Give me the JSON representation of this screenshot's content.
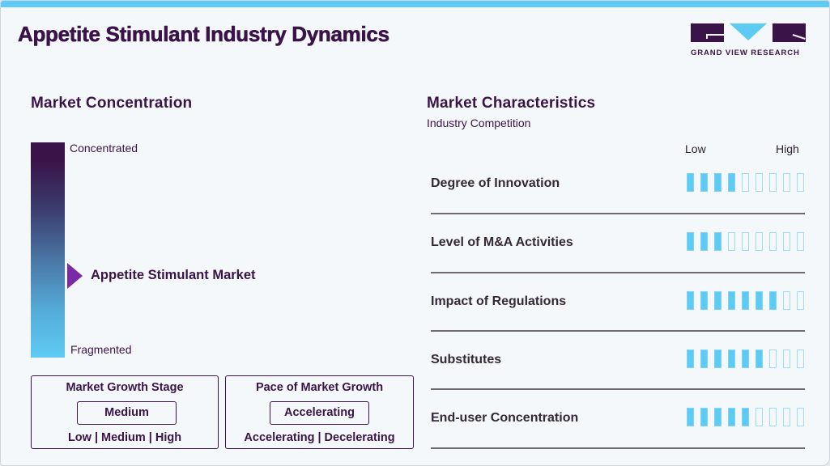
{
  "header": {
    "title": "Appetite Stimulant Industry Dynamics",
    "logo_text": "GRAND VIEW RESEARCH"
  },
  "concentration": {
    "title": "Market Concentration",
    "top_label": "Concentrated",
    "bottom_label": "Fragmented",
    "marker_label": "Appetite Stimulant Market"
  },
  "growth_stage": {
    "title": "Market Growth Stage",
    "value": "Medium",
    "options": [
      "Low",
      "Medium",
      "High"
    ]
  },
  "growth_pace": {
    "title": "Pace of Market Growth",
    "value": "Accelerating",
    "options": [
      "Accelerating",
      "Decelerating"
    ]
  },
  "characteristics": {
    "title": "Market Characteristics",
    "subtitle": "Industry Competition",
    "scale_low": "Low",
    "scale_high": "High",
    "max_level": 9,
    "rows": [
      {
        "label": "Degree of Innovation",
        "level": 4
      },
      {
        "label": "Level of M&A Activities",
        "level": 3
      },
      {
        "label": "Impact of Regulations",
        "level": 7
      },
      {
        "label": "Substitutes",
        "level": 6
      },
      {
        "label": "End-user Concentration",
        "level": 5
      }
    ]
  },
  "colors": {
    "primary": "#3a1348",
    "accent": "#5ecbf4",
    "marker": "#7b2aa6",
    "background": "#f4f8fb"
  }
}
